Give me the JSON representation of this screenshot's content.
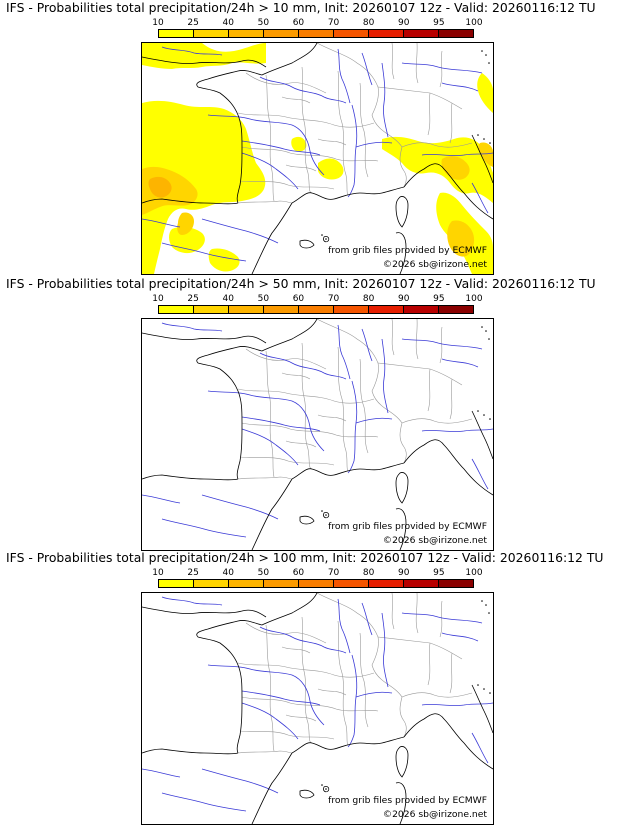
{
  "panels": [
    {
      "title": "IFS - Probabilities total precipitation/24h > 10 mm, Init: 20260107 12z - Valid: 20260116:12 TU",
      "has_precip": true
    },
    {
      "title": "IFS - Probabilities total precipitation/24h > 50 mm, Init: 20260107 12z - Valid: 20260116:12 TU",
      "has_precip": false
    },
    {
      "title": "IFS - Probabilities total precipitation/24h > 100 mm, Init: 20260107 12z - Valid: 20260116:12 TU",
      "has_precip": false
    }
  ],
  "colorbar": {
    "ticks": [
      "10",
      "25",
      "40",
      "50",
      "60",
      "70",
      "80",
      "90",
      "95",
      "100"
    ],
    "colors": [
      "#ffff00",
      "#ffd500",
      "#fdb400",
      "#fb9a00",
      "#f97d00",
      "#f55500",
      "#e61e00",
      "#b80000",
      "#8a0000"
    ]
  },
  "credits": {
    "source": "from grib files provided by ECMWF",
    "copyright": "©2026 sb@irizone.net"
  },
  "colors": {
    "coast": "#000000",
    "border": "#999999",
    "river": "#3a3ad6",
    "precip_low": "#ffff00",
    "precip_mid": "#ffd500",
    "precip_high": "#fdb400"
  }
}
